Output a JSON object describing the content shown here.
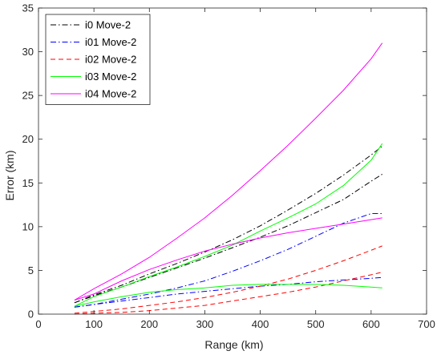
{
  "chart_data": {
    "type": "line",
    "xlabel": "Range (km)",
    "ylabel": "Error (km)",
    "xlim": [
      0,
      700
    ],
    "ylim": [
      0,
      35
    ],
    "xticks": [
      0,
      100,
      200,
      300,
      400,
      500,
      600,
      700
    ],
    "yticks": [
      0,
      5,
      10,
      15,
      20,
      25,
      30,
      35
    ],
    "grid": false,
    "legend_position": "top-left",
    "x": [
      65,
      100,
      150,
      200,
      250,
      300,
      350,
      400,
      450,
      500,
      550,
      600,
      620
    ],
    "series": [
      {
        "name": "i0 Move-2",
        "color": "#000000",
        "dash": "dash-dot",
        "curves": [
          [
            1.3,
            2.2,
            3.3,
            4.6,
            5.8,
            7.1,
            8.5,
            10.1,
            11.9,
            13.8,
            15.9,
            18.2,
            19.2
          ],
          [
            1.3,
            2.1,
            3.1,
            4.2,
            5.3,
            6.4,
            7.6,
            8.8,
            10.1,
            11.6,
            13.1,
            15.2,
            16.0
          ]
        ]
      },
      {
        "name": "i01 Move-2",
        "color": "#0000ff",
        "dash": "dash-dot",
        "curves": [
          [
            0.8,
            1.1,
            1.7,
            2.3,
            3.0,
            3.8,
            4.9,
            6.1,
            7.4,
            8.9,
            10.4,
            11.5,
            11.5
          ],
          [
            0.8,
            1.1,
            1.5,
            1.9,
            2.3,
            2.6,
            2.9,
            3.2,
            3.4,
            3.7,
            3.9,
            4.1,
            4.2
          ]
        ]
      },
      {
        "name": "i02 Move-2",
        "color": "#ff0000",
        "dash": "dashed",
        "curves": [
          [
            0.1,
            0.3,
            0.6,
            1.0,
            1.4,
            1.9,
            2.5,
            3.2,
            4.0,
            5.0,
            6.1,
            7.3,
            7.8
          ],
          [
            0.0,
            0.1,
            0.2,
            0.4,
            0.7,
            1.0,
            1.5,
            2.0,
            2.5,
            3.1,
            3.8,
            4.5,
            4.8
          ]
        ]
      },
      {
        "name": "i03 Move-2",
        "color": "#00ff00",
        "dash": "solid",
        "curves": [
          [
            0.9,
            2.0,
            3.1,
            4.3,
            5.4,
            6.6,
            7.9,
            9.5,
            11.0,
            12.6,
            14.7,
            17.6,
            19.5
          ],
          [
            0.9,
            1.4,
            2.0,
            2.5,
            2.8,
            3.0,
            3.3,
            3.4,
            3.4,
            3.4,
            3.3,
            3.1,
            3.0
          ]
        ]
      },
      {
        "name": "i04 Move-2",
        "color": "#ff00ff",
        "dash": "solid",
        "curves": [
          [
            1.6,
            2.9,
            4.6,
            6.5,
            8.7,
            11.0,
            13.6,
            16.4,
            19.3,
            22.4,
            25.6,
            29.2,
            31.0
          ],
          [
            1.6,
            2.3,
            3.8,
            5.1,
            6.2,
            7.2,
            8.0,
            8.7,
            9.3,
            9.8,
            10.3,
            10.8,
            11.0
          ]
        ]
      }
    ]
  }
}
